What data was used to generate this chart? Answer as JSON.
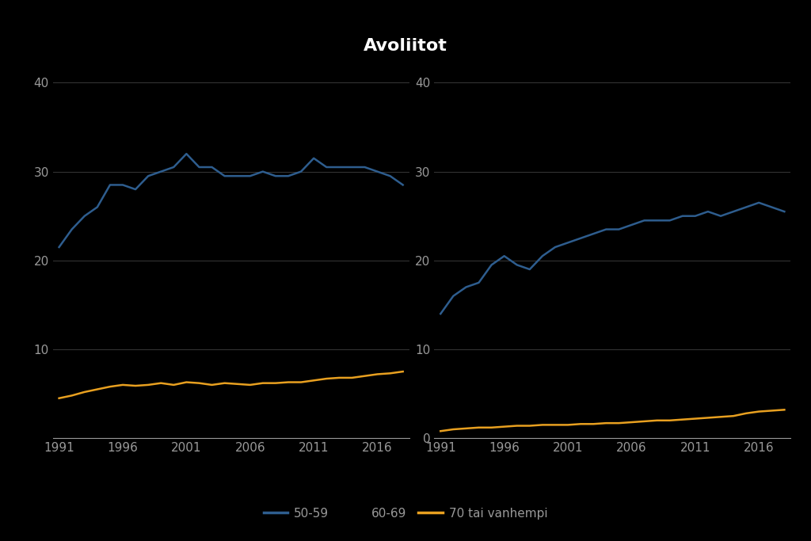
{
  "title": "Avoliitot",
  "years": [
    1991,
    1992,
    1993,
    1994,
    1995,
    1996,
    1997,
    1998,
    1999,
    2000,
    2001,
    2002,
    2003,
    2004,
    2005,
    2006,
    2007,
    2008,
    2009,
    2010,
    2011,
    2012,
    2013,
    2014,
    2015,
    2016,
    2017,
    2018
  ],
  "left_blue_50_59": [
    21.5,
    23.5,
    25.0,
    26.0,
    28.5,
    28.5,
    28.0,
    29.5,
    30.0,
    30.5,
    32.0,
    30.5,
    30.5,
    29.5,
    29.5,
    29.5,
    30.0,
    29.5,
    29.5,
    30.0,
    31.5,
    30.5,
    30.5,
    30.5,
    30.5,
    30.0,
    29.5,
    28.5
  ],
  "left_orange_70plus": [
    4.5,
    4.8,
    5.2,
    5.5,
    5.8,
    6.0,
    5.9,
    6.0,
    6.2,
    6.0,
    6.3,
    6.2,
    6.0,
    6.2,
    6.1,
    6.0,
    6.2,
    6.2,
    6.3,
    6.3,
    6.5,
    6.7,
    6.8,
    6.8,
    7.0,
    7.2,
    7.3,
    7.5
  ],
  "right_blue_60_69": [
    14.0,
    16.0,
    17.0,
    17.5,
    19.5,
    20.5,
    19.5,
    19.0,
    20.5,
    21.5,
    22.0,
    22.5,
    23.0,
    23.5,
    23.5,
    24.0,
    24.5,
    24.5,
    24.5,
    25.0,
    25.0,
    25.5,
    25.0,
    25.5,
    26.0,
    26.5,
    26.0,
    25.5
  ],
  "right_orange_70plus": [
    0.8,
    1.0,
    1.1,
    1.2,
    1.2,
    1.3,
    1.4,
    1.4,
    1.5,
    1.5,
    1.5,
    1.6,
    1.6,
    1.7,
    1.7,
    1.8,
    1.9,
    2.0,
    2.0,
    2.1,
    2.2,
    2.3,
    2.4,
    2.5,
    2.8,
    3.0,
    3.1,
    3.2
  ],
  "blue_color": "#2E5D8E",
  "orange_color": "#E8A020",
  "bg_color": "#000000",
  "text_color": "#999999",
  "title_color": "#ffffff",
  "grid_color": "#333333",
  "ylim": [
    0,
    42
  ],
  "yticks": [
    0,
    10,
    20,
    30,
    40
  ],
  "xticks": [
    1991,
    1996,
    2001,
    2006,
    2011,
    2016
  ],
  "legend_labels": [
    "50-59",
    "60-69",
    "70 tai vanhempi"
  ],
  "title_fontsize": 16,
  "tick_fontsize": 11,
  "legend_fontsize": 11
}
